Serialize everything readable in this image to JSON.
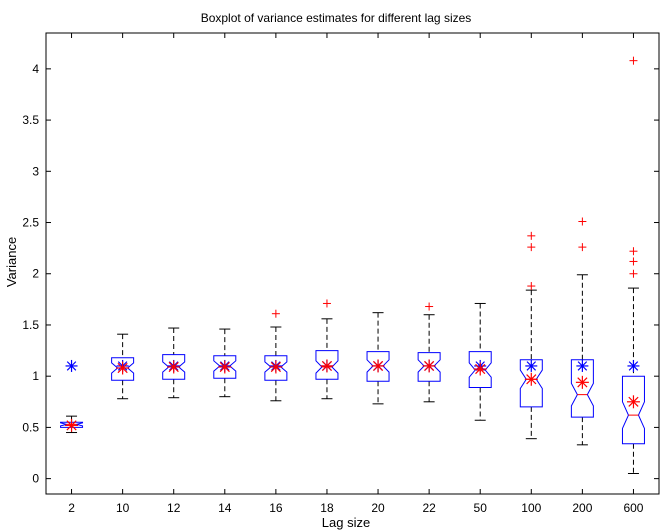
{
  "chart_data": {
    "type": "boxplot",
    "title": "Boxplot of variance estimates for different lag sizes",
    "xlabel": "Lag size",
    "ylabel": "Variance",
    "ylim": [
      -0.15,
      4.35
    ],
    "yticks": [
      0,
      0.5,
      1,
      1.5,
      2,
      2.5,
      3,
      3.5,
      4
    ],
    "ytick_labels": [
      "0",
      "0.5",
      "1",
      "1.5",
      "2",
      "2.5",
      "3",
      "3.5",
      "4"
    ],
    "notched": true,
    "categories": [
      "2",
      "10",
      "12",
      "14",
      "16",
      "18",
      "20",
      "22",
      "50",
      "100",
      "200",
      "600"
    ],
    "boxes": [
      {
        "category": "2",
        "whisker_low": 0.45,
        "q1": 0.5,
        "median": 0.53,
        "q3": 0.55,
        "whisker_high": 0.61,
        "notch_low": 0.515,
        "notch_high": 0.545,
        "outliers": [],
        "mean": 0.52,
        "reference": 1.1
      },
      {
        "category": "10",
        "whisker_low": 0.78,
        "q1": 0.96,
        "median": 1.08,
        "q3": 1.18,
        "whisker_high": 1.41,
        "notch_low": 1.03,
        "notch_high": 1.13,
        "outliers": [],
        "mean": 1.08,
        "reference": 1.1
      },
      {
        "category": "12",
        "whisker_low": 0.79,
        "q1": 0.97,
        "median": 1.09,
        "q3": 1.21,
        "whisker_high": 1.47,
        "notch_low": 1.04,
        "notch_high": 1.14,
        "outliers": [],
        "mean": 1.09,
        "reference": 1.1
      },
      {
        "category": "14",
        "whisker_low": 0.8,
        "q1": 0.98,
        "median": 1.1,
        "q3": 1.2,
        "whisker_high": 1.46,
        "notch_low": 1.05,
        "notch_high": 1.15,
        "outliers": [],
        "mean": 1.09,
        "reference": 1.1
      },
      {
        "category": "16",
        "whisker_low": 0.76,
        "q1": 0.96,
        "median": 1.09,
        "q3": 1.2,
        "whisker_high": 1.48,
        "notch_low": 1.04,
        "notch_high": 1.14,
        "outliers": [
          1.61
        ],
        "mean": 1.09,
        "reference": 1.1
      },
      {
        "category": "18",
        "whisker_low": 0.78,
        "q1": 0.97,
        "median": 1.09,
        "q3": 1.25,
        "whisker_high": 1.56,
        "notch_low": 1.03,
        "notch_high": 1.15,
        "outliers": [
          1.71
        ],
        "mean": 1.1,
        "reference": 1.1
      },
      {
        "category": "20",
        "whisker_low": 0.73,
        "q1": 0.95,
        "median": 1.1,
        "q3": 1.24,
        "whisker_high": 1.62,
        "notch_low": 1.04,
        "notch_high": 1.16,
        "outliers": [],
        "mean": 1.1,
        "reference": 1.1
      },
      {
        "category": "22",
        "whisker_low": 0.75,
        "q1": 0.95,
        "median": 1.1,
        "q3": 1.23,
        "whisker_high": 1.6,
        "notch_low": 1.04,
        "notch_high": 1.16,
        "outliers": [
          1.68
        ],
        "mean": 1.1,
        "reference": 1.1
      },
      {
        "category": "50",
        "whisker_low": 0.57,
        "q1": 0.89,
        "median": 1.06,
        "q3": 1.24,
        "whisker_high": 1.71,
        "notch_low": 0.99,
        "notch_high": 1.13,
        "outliers": [],
        "mean": 1.07,
        "reference": 1.1
      },
      {
        "category": "100",
        "whisker_low": 0.39,
        "q1": 0.7,
        "median": 0.97,
        "q3": 1.16,
        "whisker_high": 1.84,
        "notch_low": 0.88,
        "notch_high": 1.06,
        "outliers": [
          1.88,
          2.26,
          2.37
        ],
        "mean": 0.97,
        "reference": 1.1
      },
      {
        "category": "200",
        "whisker_low": 0.33,
        "q1": 0.6,
        "median": 0.82,
        "q3": 1.16,
        "whisker_high": 1.99,
        "notch_low": 0.71,
        "notch_high": 0.93,
        "outliers": [
          2.26,
          2.51
        ],
        "mean": 0.94,
        "reference": 1.1
      },
      {
        "category": "600",
        "whisker_low": 0.05,
        "q1": 0.34,
        "median": 0.62,
        "q3": 1.0,
        "whisker_high": 1.86,
        "notch_low": 0.49,
        "notch_high": 0.75,
        "outliers": [
          2.0,
          2.12,
          2.22,
          4.08
        ],
        "mean": 0.75,
        "reference": 1.1
      }
    ],
    "colors": {
      "box": "#0000ff",
      "median": "#ff0000",
      "whisker": "#000000",
      "outlier": "#ff0000",
      "mean_marker": "#ff0000",
      "reference_marker": "#0000ff",
      "axes": "#000000"
    },
    "grid": false,
    "legend": "none"
  }
}
